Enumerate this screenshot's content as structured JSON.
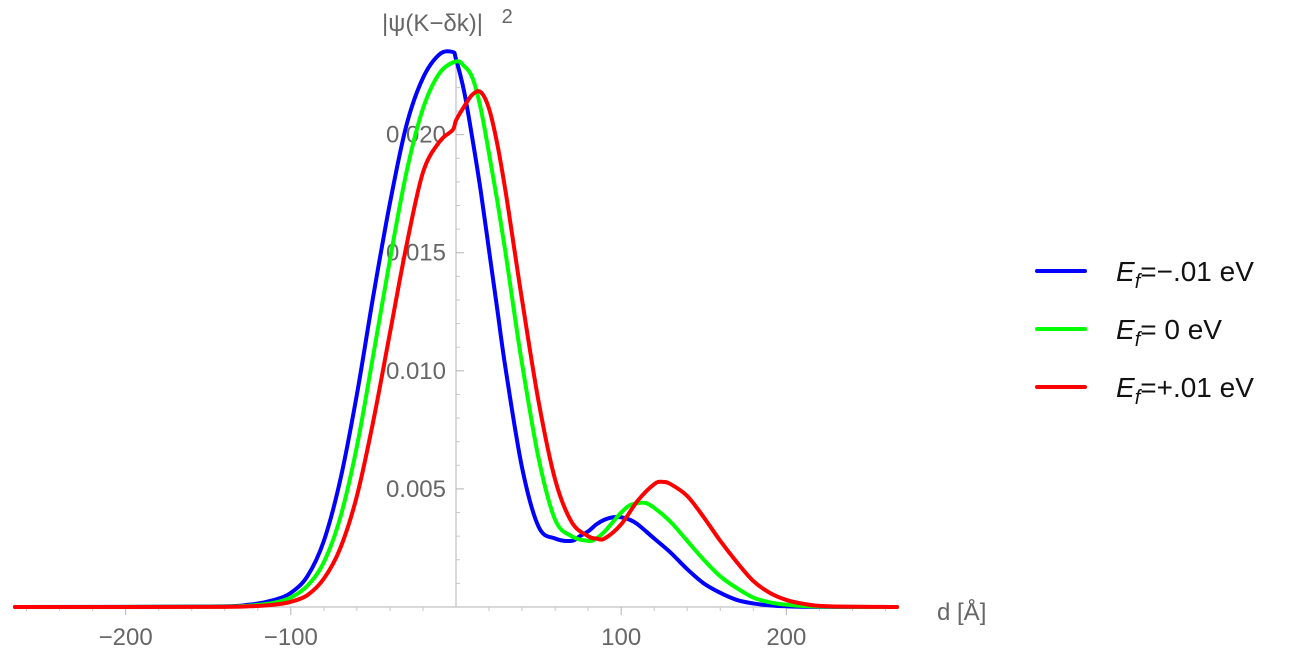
{
  "chart_data": {
    "type": "line",
    "xlabel": "d [Å]",
    "ylabel": "|ψ(K−δk)|²",
    "ylabel_main": "|ψ(K−δk)|",
    "ylabel_sup": "2",
    "xlim": [
      -267,
      267
    ],
    "ylim": [
      0,
      0.0235
    ],
    "x_ticks": [
      -200,
      -100,
      100,
      200
    ],
    "x_tick_labels": [
      "−200",
      "−100",
      "100",
      "200"
    ],
    "y_ticks": [
      0.005,
      0.01,
      0.015,
      0.02
    ],
    "y_tick_labels": [
      "0.005",
      "0.010",
      "0.015",
      "0.020"
    ],
    "grid": false,
    "legend_position": "right",
    "series": [
      {
        "name": "E_f=−.01 eV",
        "legend_main": "E",
        "legend_sub": "f",
        "legend_rest": "=−.01 eV",
        "color": "#0000ff",
        "x": [
          -267,
          -150,
          -125,
          -110,
          -100,
          -90,
          -80,
          -70,
          -60,
          -50,
          -40,
          -30,
          -20,
          -10,
          -2,
          0,
          5,
          10,
          15,
          20,
          25,
          30,
          40,
          50,
          60,
          70,
          75,
          80,
          85,
          90,
          95,
          100,
          105,
          110,
          120,
          130,
          140,
          150,
          160,
          170,
          180,
          190,
          200,
          220,
          267
        ],
        "y": [
          0,
          2e-05,
          0.0001,
          0.0003,
          0.0006,
          0.0013,
          0.0028,
          0.0054,
          0.009,
          0.0132,
          0.0171,
          0.0204,
          0.0224,
          0.0234,
          0.0235,
          0.0232,
          0.0218,
          0.0198,
          0.0176,
          0.0151,
          0.0126,
          0.0101,
          0.0059,
          0.0034,
          0.0029,
          0.0028,
          0.003,
          0.0032,
          0.0035,
          0.0037,
          0.0038,
          0.0038,
          0.0037,
          0.0035,
          0.0029,
          0.0023,
          0.0016,
          0.001,
          0.0006,
          0.0003,
          0.00015,
          7e-05,
          3e-05,
          5e-06,
          0
        ]
      },
      {
        "name": "E_f= 0 eV",
        "legend_main": "E",
        "legend_sub": "f",
        "legend_rest": "=  0 eV",
        "color": "#00ff00",
        "x": [
          -267,
          -150,
          -125,
          -110,
          -100,
          -90,
          -80,
          -70,
          -60,
          -50,
          -40,
          -30,
          -20,
          -10,
          0,
          5,
          10,
          15,
          20,
          25,
          30,
          35,
          40,
          50,
          60,
          70,
          80,
          85,
          90,
          95,
          100,
          105,
          110,
          115,
          120,
          130,
          140,
          150,
          160,
          170,
          180,
          190,
          200,
          220,
          267
        ],
        "y": [
          0,
          1e-05,
          6e-05,
          0.00018,
          0.0004,
          0.0009,
          0.0019,
          0.0038,
          0.0068,
          0.0107,
          0.0147,
          0.0184,
          0.0211,
          0.0226,
          0.0231,
          0.0229,
          0.0224,
          0.0211,
          0.0192,
          0.0172,
          0.015,
          0.0126,
          0.0103,
          0.0063,
          0.0037,
          0.003,
          0.0028,
          0.0029,
          0.0032,
          0.0036,
          0.004,
          0.0043,
          0.0044,
          0.0044,
          0.0042,
          0.0036,
          0.0028,
          0.002,
          0.0013,
          0.0008,
          0.0004,
          0.0002,
          0.0001,
          2e-05,
          0
        ]
      },
      {
        "name": "E_f=+.01 eV",
        "legend_main": "E",
        "legend_sub": "f",
        "legend_rest": "=+.01 eV",
        "color": "#ff0000",
        "x": [
          -267,
          -150,
          -125,
          -110,
          -100,
          -90,
          -80,
          -70,
          -60,
          -50,
          -40,
          -30,
          -20,
          -10,
          -2,
          0,
          5,
          10,
          15,
          20,
          25,
          30,
          35,
          40,
          50,
          60,
          70,
          80,
          85,
          90,
          100,
          110,
          120,
          125,
          130,
          140,
          150,
          160,
          170,
          180,
          190,
          200,
          210,
          225,
          267
        ],
        "y": [
          0,
          5e-06,
          3e-05,
          0.0001,
          0.00022,
          0.0005,
          0.0012,
          0.0025,
          0.0047,
          0.0079,
          0.0116,
          0.0153,
          0.0184,
          0.0197,
          0.0202,
          0.0206,
          0.0212,
          0.0217,
          0.0218,
          0.0211,
          0.0196,
          0.0176,
          0.0153,
          0.013,
          0.0087,
          0.0054,
          0.0036,
          0.003,
          0.0029,
          0.0029,
          0.0035,
          0.0045,
          0.0052,
          0.0053,
          0.0052,
          0.0047,
          0.0038,
          0.0028,
          0.0019,
          0.0011,
          0.0006,
          0.0003,
          0.00014,
          3e-05,
          0
        ]
      }
    ]
  }
}
